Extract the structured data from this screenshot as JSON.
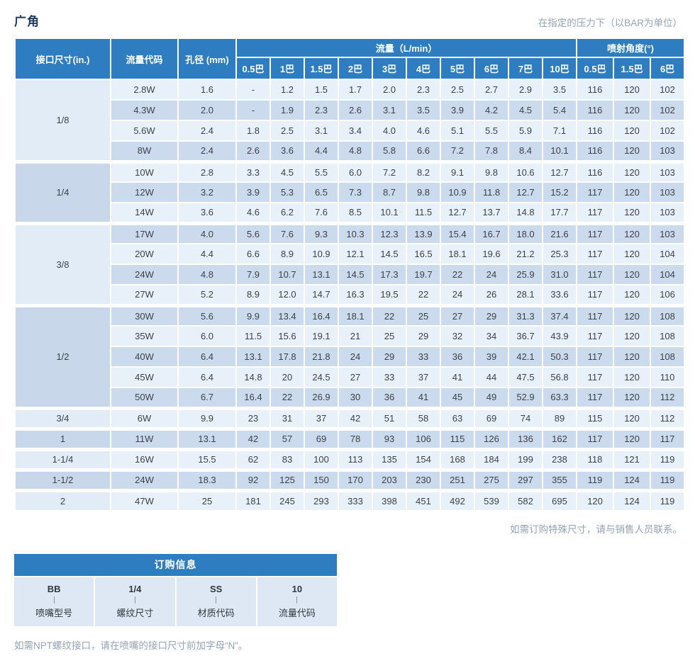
{
  "page": {
    "title": "广角",
    "top_note": "在指定的压力下（以BAR为单位）",
    "table_note": "如需订购特殊尺寸，请与销售人员联系。",
    "bottom_note": "如需NPT螺纹接口，请在喷嘴的接口尺寸前加字母“N”。"
  },
  "colors": {
    "header_blue": "#2e7dc1",
    "row_light": "#e8f1f9",
    "row_dark": "#cbdaec",
    "size_light": "#e2ecf7",
    "size_dark": "#c9d7ea",
    "note_gray": "#94a3b6",
    "title_navy": "#1d3a5f"
  },
  "flow_table": {
    "headers": {
      "size": "接口尺寸(in.)",
      "code": "流量代码",
      "orifice": "孔径 (mm)",
      "flow_group": "流量（L/min）",
      "flow_pressures": [
        "0.5巴",
        "1巴",
        "1.5巴",
        "2巴",
        "3巴",
        "4巴",
        "5巴",
        "6巴",
        "7巴",
        "10巴"
      ],
      "angle_group": "喷射角度(°)",
      "angle_pressures": [
        "0.5巴",
        "1.5巴",
        "6巴"
      ]
    },
    "groups": [
      {
        "size": "1/8",
        "rows": [
          {
            "code": "2.8W",
            "orifice": "1.6",
            "flows": [
              "-",
              "1.2",
              "1.5",
              "1.7",
              "2.0",
              "2.3",
              "2.5",
              "2.7",
              "2.9",
              "3.5"
            ],
            "angles": [
              "116",
              "120",
              "102"
            ]
          },
          {
            "code": "4.3W",
            "orifice": "2.0",
            "flows": [
              "-",
              "1.9",
              "2.3",
              "2.6",
              "3.1",
              "3.5",
              "3.9",
              "4.2",
              "4.5",
              "5.4"
            ],
            "angles": [
              "116",
              "120",
              "102"
            ]
          },
          {
            "code": "5.6W",
            "orifice": "2.4",
            "flows": [
              "1.8",
              "2.5",
              "3.1",
              "3.4",
              "4.0",
              "4.6",
              "5.1",
              "5.5",
              "5.9",
              "7.1"
            ],
            "angles": [
              "116",
              "120",
              "102"
            ]
          },
          {
            "code": "8W",
            "orifice": "2.4",
            "flows": [
              "2.6",
              "3.6",
              "4.4",
              "4.8",
              "5.8",
              "6.6",
              "7.2",
              "7.8",
              "8.4",
              "10.1"
            ],
            "angles": [
              "116",
              "120",
              "103"
            ]
          }
        ]
      },
      {
        "size": "1/4",
        "rows": [
          {
            "code": "10W",
            "orifice": "2.8",
            "flows": [
              "3.3",
              "4.5",
              "5.5",
              "6.0",
              "7.2",
              "8.2",
              "9.1",
              "9.8",
              "10.6",
              "12.7"
            ],
            "angles": [
              "116",
              "120",
              "103"
            ]
          },
          {
            "code": "12W",
            "orifice": "3.2",
            "flows": [
              "3.9",
              "5.3",
              "6.5",
              "7.3",
              "8.7",
              "9.8",
              "10.9",
              "11.8",
              "12.7",
              "15.2"
            ],
            "angles": [
              "117",
              "120",
              "103"
            ]
          },
          {
            "code": "14W",
            "orifice": "3.6",
            "flows": [
              "4.6",
              "6.2",
              "7.6",
              "8.5",
              "10.1",
              "11.5",
              "12.7",
              "13.7",
              "14.8",
              "17.7"
            ],
            "angles": [
              "117",
              "120",
              "103"
            ]
          }
        ]
      },
      {
        "size": "3/8",
        "rows": [
          {
            "code": "17W",
            "orifice": "4.0",
            "flows": [
              "5.6",
              "7.6",
              "9.3",
              "10.3",
              "12.3",
              "13.9",
              "15.4",
              "16.7",
              "18.0",
              "21.6"
            ],
            "angles": [
              "117",
              "120",
              "103"
            ]
          },
          {
            "code": "20W",
            "orifice": "4.4",
            "flows": [
              "6.6",
              "8.9",
              "10.9",
              "12.1",
              "14.5",
              "16.5",
              "18.1",
              "19.6",
              "21.2",
              "25.3"
            ],
            "angles": [
              "117",
              "120",
              "104"
            ]
          },
          {
            "code": "24W",
            "orifice": "4.8",
            "flows": [
              "7.9",
              "10.7",
              "13.1",
              "14.5",
              "17.3",
              "19.7",
              "22",
              "24",
              "25.9",
              "31.0"
            ],
            "angles": [
              "117",
              "120",
              "104"
            ]
          },
          {
            "code": "27W",
            "orifice": "5.2",
            "flows": [
              "8.9",
              "12.0",
              "14.7",
              "16.3",
              "19.5",
              "22",
              "24",
              "26",
              "28.1",
              "33.6"
            ],
            "angles": [
              "117",
              "120",
              "106"
            ]
          }
        ]
      },
      {
        "size": "1/2",
        "rows": [
          {
            "code": "30W",
            "orifice": "5.6",
            "flows": [
              "9.9",
              "13.4",
              "16.4",
              "18.1",
              "22",
              "25",
              "27",
              "29",
              "31.3",
              "37.4"
            ],
            "angles": [
              "117",
              "120",
              "108"
            ]
          },
          {
            "code": "35W",
            "orifice": "6.0",
            "flows": [
              "11.5",
              "15.6",
              "19.1",
              "21",
              "25",
              "29",
              "32",
              "34",
              "36.7",
              "43.9"
            ],
            "angles": [
              "117",
              "120",
              "108"
            ]
          },
          {
            "code": "40W",
            "orifice": "6.4",
            "flows": [
              "13.1",
              "17.8",
              "21.8",
              "24",
              "29",
              "33",
              "36",
              "39",
              "42.1",
              "50.3"
            ],
            "angles": [
              "117",
              "120",
              "108"
            ]
          },
          {
            "code": "45W",
            "orifice": "6.4",
            "flows": [
              "14.8",
              "20",
              "24.5",
              "27",
              "33",
              "37",
              "41",
              "44",
              "47.5",
              "56.8"
            ],
            "angles": [
              "117",
              "120",
              "110"
            ]
          },
          {
            "code": "50W",
            "orifice": "6.7",
            "flows": [
              "16.4",
              "22",
              "26.9",
              "30",
              "36",
              "41",
              "45",
              "49",
              "52.9",
              "63.3"
            ],
            "angles": [
              "117",
              "120",
              "112"
            ]
          }
        ]
      },
      {
        "size": "3/4",
        "rows": [
          {
            "code": "6W",
            "orifice": "9.9",
            "flows": [
              "23",
              "31",
              "37",
              "42",
              "51",
              "58",
              "63",
              "69",
              "74",
              "89"
            ],
            "angles": [
              "115",
              "120",
              "112"
            ]
          }
        ]
      },
      {
        "size": "1",
        "rows": [
          {
            "code": "11W",
            "orifice": "13.1",
            "flows": [
              "42",
              "57",
              "69",
              "78",
              "93",
              "106",
              "115",
              "126",
              "136",
              "162"
            ],
            "angles": [
              "117",
              "120",
              "117"
            ]
          }
        ]
      },
      {
        "size": "1-1/4",
        "rows": [
          {
            "code": "16W",
            "orifice": "15.5",
            "flows": [
              "62",
              "83",
              "100",
              "113",
              "135",
              "154",
              "168",
              "184",
              "199",
              "238"
            ],
            "angles": [
              "118",
              "121",
              "119"
            ]
          }
        ]
      },
      {
        "size": "1-1/2",
        "rows": [
          {
            "code": "24W",
            "orifice": "18.3",
            "flows": [
              "92",
              "125",
              "150",
              "170",
              "203",
              "230",
              "251",
              "275",
              "297",
              "355"
            ],
            "angles": [
              "119",
              "124",
              "119"
            ]
          }
        ]
      },
      {
        "size": "2",
        "rows": [
          {
            "code": "47W",
            "orifice": "25",
            "flows": [
              "181",
              "245",
              "293",
              "333",
              "398",
              "451",
              "492",
              "539",
              "582",
              "695"
            ],
            "angles": [
              "120",
              "124",
              "119"
            ]
          }
        ]
      }
    ]
  },
  "ordering": {
    "title": "订购信息",
    "items": [
      {
        "value": "BB",
        "label": "喷嘴型号"
      },
      {
        "value": "1/4",
        "label": "螺纹尺寸"
      },
      {
        "value": "SS",
        "label": "材质代码"
      },
      {
        "value": "10",
        "label": "流量代码"
      }
    ]
  }
}
